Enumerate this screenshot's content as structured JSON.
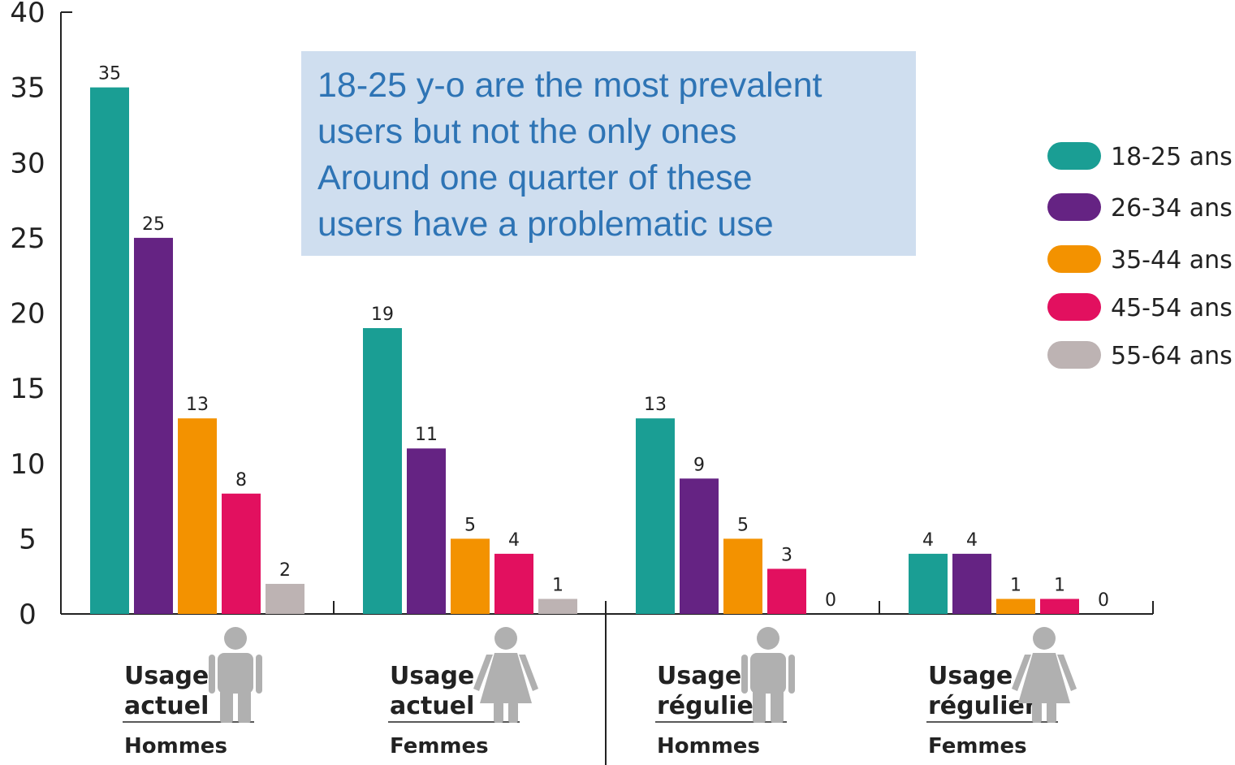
{
  "chart_data": {
    "type": "bar",
    "title": "",
    "xlabel": "",
    "ylabel": "",
    "ylim": [
      0,
      40
    ],
    "yticks": [
      0,
      5,
      10,
      15,
      20,
      25,
      30,
      35,
      40
    ],
    "grid": false,
    "legend_position": "right",
    "categories": [
      {
        "lines": [
          "Usage",
          "actuel"
        ],
        "gender": "Hommes",
        "figure": "man"
      },
      {
        "lines": [
          "Usage",
          "actuel"
        ],
        "gender": "Femmes",
        "figure": "woman"
      },
      {
        "lines": [
          "Usage",
          "régulier"
        ],
        "gender": "Hommes",
        "figure": "man"
      },
      {
        "lines": [
          "Usage",
          "régulier"
        ],
        "gender": "Femmes",
        "figure": "woman"
      }
    ],
    "series": [
      {
        "name": "18-25 ans",
        "color": "#1a9e94",
        "values": [
          35,
          19,
          13,
          4
        ]
      },
      {
        "name": "26-34 ans",
        "color": "#652383",
        "values": [
          25,
          11,
          9,
          4
        ]
      },
      {
        "name": "35-44 ans",
        "color": "#f39200",
        "values": [
          13,
          5,
          5,
          1
        ]
      },
      {
        "name": "45-54 ans",
        "color": "#e2105f",
        "values": [
          8,
          4,
          3,
          1
        ]
      },
      {
        "name": "55-64 ans",
        "color": "#bdb3b3",
        "values": [
          2,
          1,
          0,
          0
        ]
      }
    ],
    "annotation_lines": [
      "18-25 y-o are the most prevalent",
      "users but not the only ones",
      "Around one quarter of these",
      "users have a problematic use"
    ]
  },
  "colors": {
    "annotation_bg": "#cfdeef",
    "annotation_text": "#2e74b5",
    "figure_gray": "#b0b0b0",
    "axis": "#222222"
  }
}
